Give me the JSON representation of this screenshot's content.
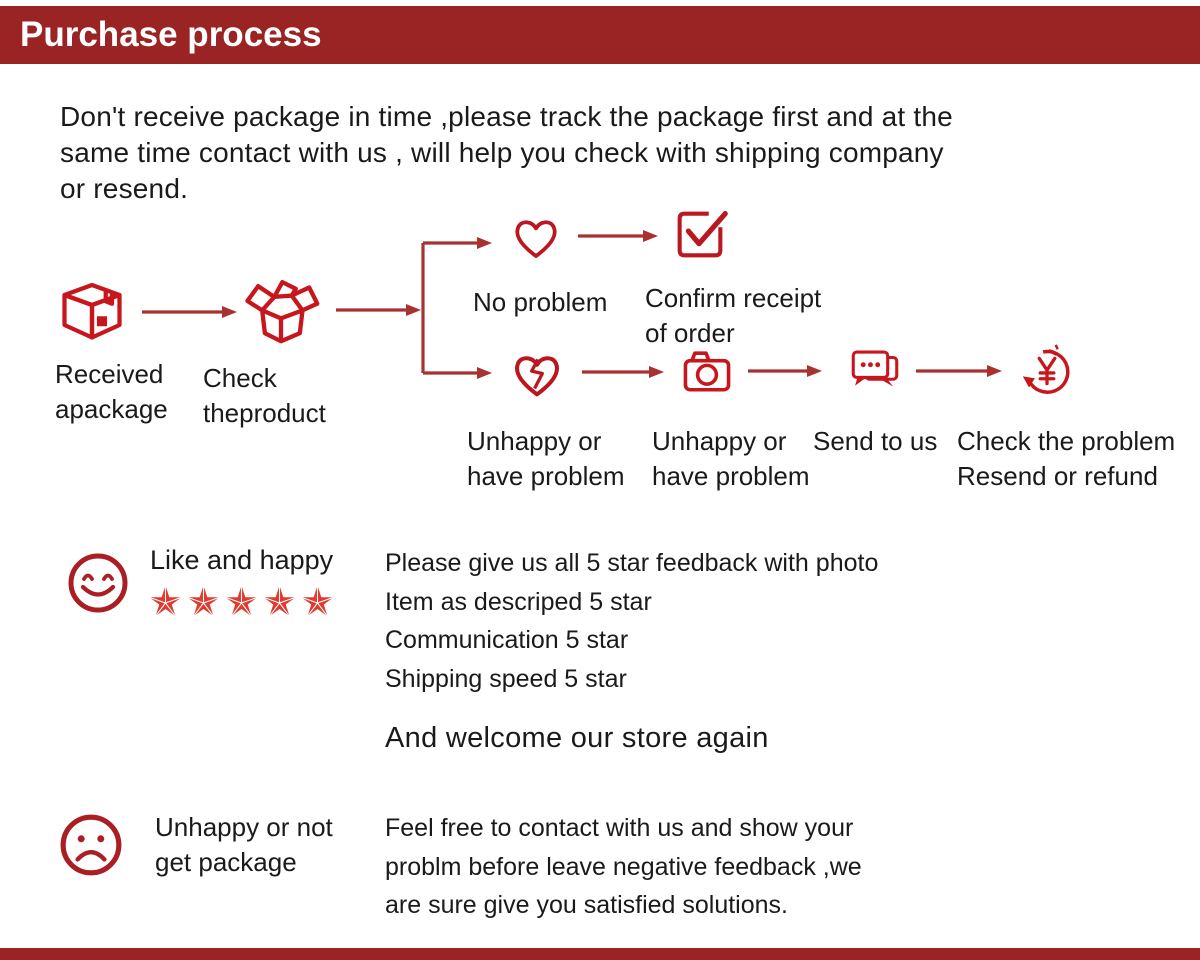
{
  "header": {
    "title": "Purchase process"
  },
  "colors": {
    "header_bg": "#9a2423",
    "icon_red": "#c8161d",
    "arrow_red": "#a83230",
    "face_red": "#ab1f24",
    "star_red": "#e03a2f",
    "text": "#1a1a1a"
  },
  "intro": {
    "lines": [
      "Don't receive package in time ,please track the package first and at the",
      "same time contact with us , will help you check with shipping company",
      "or resend."
    ]
  },
  "flow": {
    "received": {
      "line1": "Received",
      "line2": "apackage"
    },
    "check": {
      "line1": "Check",
      "line2": "theproduct"
    },
    "no_problem": {
      "label": "No problem"
    },
    "confirm": {
      "line1": "Confirm receipt",
      "line2": "of order"
    },
    "unhappy_heart": {
      "line1": "Unhappy or",
      "line2": "have problem"
    },
    "unhappy_camera": {
      "line1": "Unhappy or",
      "line2": "have problem"
    },
    "send": {
      "label": "Send to us"
    },
    "resolve": {
      "line1": "Check the problem",
      "line2": "Resend or refund"
    }
  },
  "happy": {
    "title": "Like and happy",
    "star_count": 5,
    "lines": [
      "Please give us all 5 star feedback with photo",
      "Item as descriped 5 star",
      "Communication 5 star",
      "Shipping speed 5 star"
    ],
    "welcome": "And welcome our store again"
  },
  "unhappy": {
    "title_line1": "Unhappy or not",
    "title_line2": "get package",
    "lines": [
      "Feel free to contact with us and show your",
      "problm before leave negative feedback ,we",
      "are sure give you satisfied solutions."
    ]
  }
}
